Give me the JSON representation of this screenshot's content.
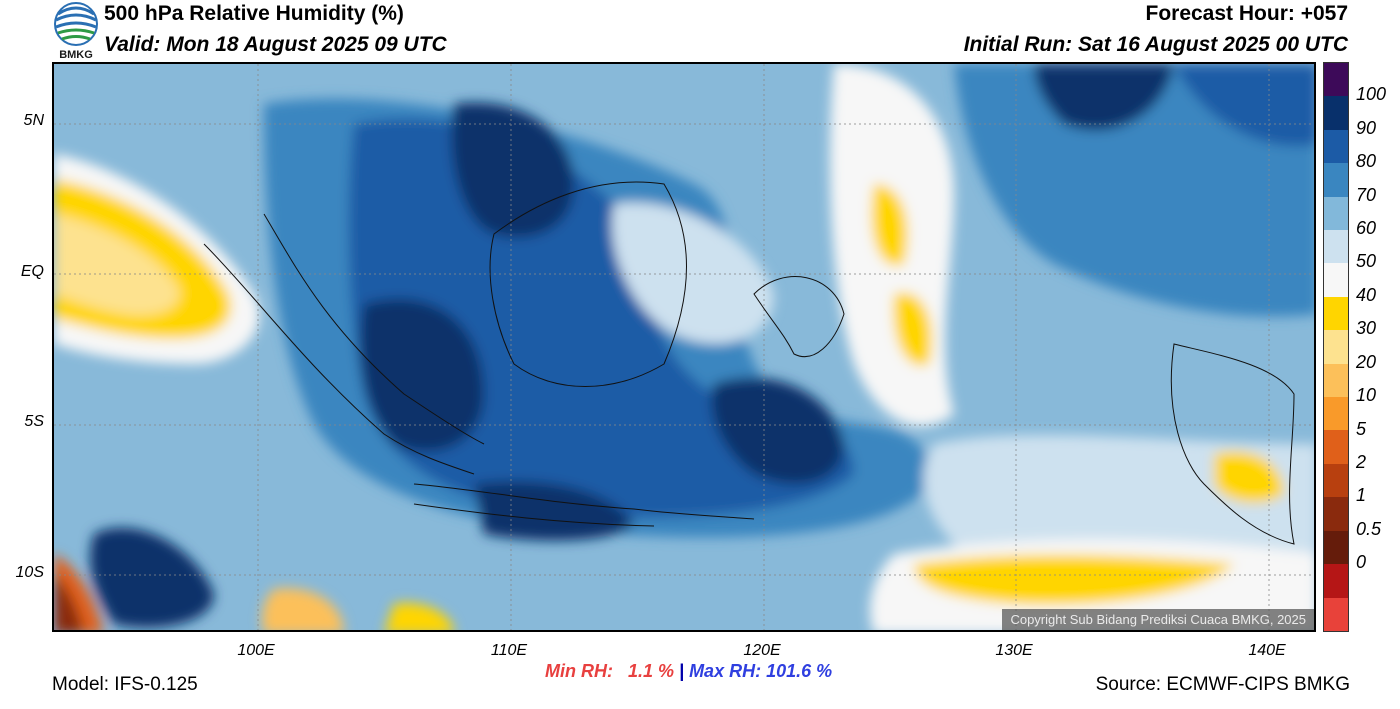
{
  "header": {
    "title": "500 hPa Relative Humidity (%)",
    "valid": "Valid: Mon 18 August 2025 09 UTC",
    "forecast_hour": "Forecast Hour: +057",
    "initial_run": "Initial Run: Sat 16 August 2025 00 UTC"
  },
  "logo": {
    "text": "BMKG",
    "icon": "bmkg-logo-icon"
  },
  "map": {
    "lat_labels": [
      "5N",
      "EQ",
      "5S",
      "10S"
    ],
    "lon_labels": [
      "100E",
      "110E",
      "120E",
      "130E",
      "140E"
    ],
    "copyright": "Copyright Sub Bidang Prediksi Cuaca BMKG, 2025"
  },
  "colorbar": {
    "labels": [
      "100",
      "90",
      "80",
      "70",
      "60",
      "50",
      "40",
      "30",
      "20",
      "10",
      "5",
      "2",
      "1",
      "0.5",
      "0"
    ],
    "colors": [
      "#3d0a59",
      "#08306b",
      "#1c5ba6",
      "#3a86c0",
      "#82b8da",
      "#cde1ef",
      "#f7f7f7",
      "#ffd500",
      "#fde28f",
      "#fcc05a",
      "#f99a2a",
      "#e0601a",
      "#b8400f",
      "#8a2a0d",
      "#651c0b",
      "#b51616",
      "#e8423a"
    ]
  },
  "stats": {
    "min": "Min RH:   1.1 %",
    "separator": " | ",
    "max": "Max RH: 101.6 %"
  },
  "footer": {
    "model": "Model: IFS-0.125",
    "source": "Source: ECMWF-CIPS BMKG"
  }
}
